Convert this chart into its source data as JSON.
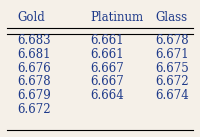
{
  "headers": [
    "Gold",
    "Platinum",
    "Glass"
  ],
  "gold": [
    "6.683",
    "6.681",
    "6.676",
    "6.678",
    "6.679",
    "6.672"
  ],
  "platinum": [
    "6.661",
    "6.661",
    "6.667",
    "6.667",
    "6.664",
    ""
  ],
  "glass": [
    "6.678",
    "6.671",
    "6.675",
    "6.672",
    "6.674",
    ""
  ],
  "header_color": "#1e3a8a",
  "data_color": "#1e3a8a",
  "bg_color": "#f5f0e8",
  "figsize": [
    2.0,
    1.37
  ],
  "dpi": 100
}
